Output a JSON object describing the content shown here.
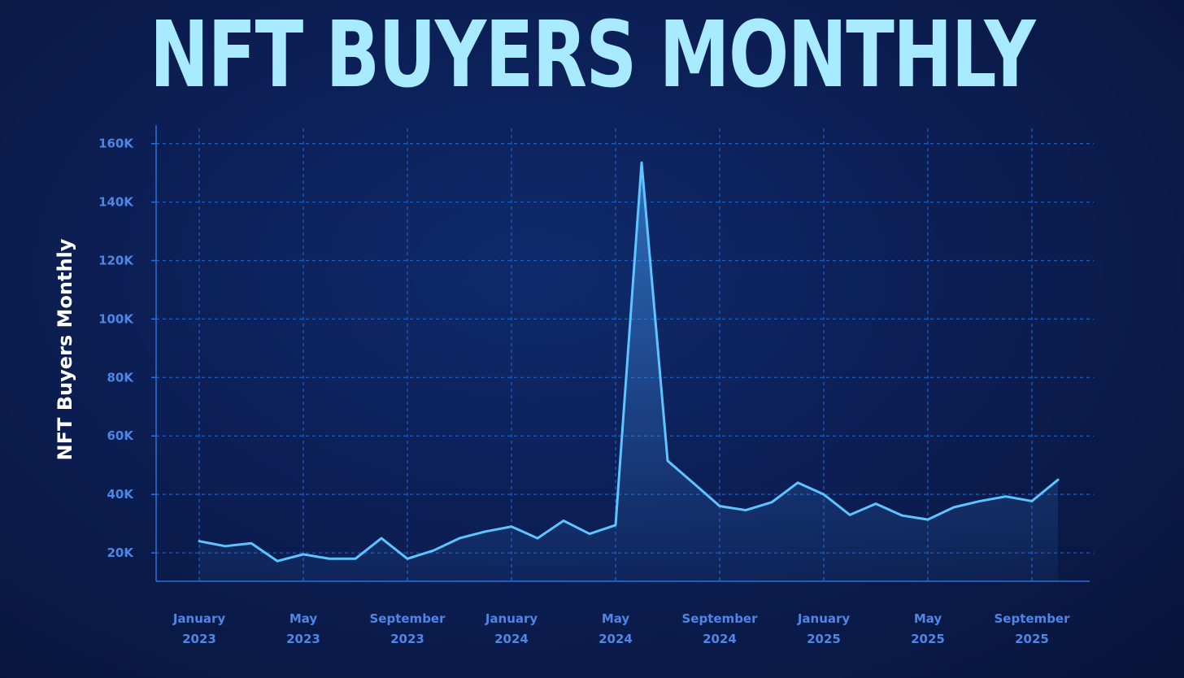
{
  "chart_data": {
    "type": "area",
    "title": "NFT BUYERS MONTHLY",
    "ylabel": "NFT Buyers Monthly",
    "xlabel": "",
    "ylim": [
      10000,
      165000
    ],
    "y_ticks": [
      "20K",
      "40K",
      "60K",
      "80K",
      "100K",
      "120K",
      "140K",
      "160K"
    ],
    "y_tick_values": [
      20000,
      40000,
      60000,
      80000,
      100000,
      120000,
      140000,
      160000
    ],
    "x_ticks": [
      {
        "month": "January",
        "year": "2023",
        "index": 0
      },
      {
        "month": "May",
        "year": "2023",
        "index": 4
      },
      {
        "month": "September",
        "year": "2023",
        "index": 8
      },
      {
        "month": "January",
        "year": "2024",
        "index": 12
      },
      {
        "month": "May",
        "year": "2024",
        "index": 16
      },
      {
        "month": "September",
        "year": "2024",
        "index": 20
      },
      {
        "month": "January",
        "year": "2025",
        "index": 24
      },
      {
        "month": "May",
        "year": "2025",
        "index": 28
      },
      {
        "month": "September",
        "year": "2025",
        "index": 32
      }
    ],
    "x": [
      "2023-01",
      "2023-02",
      "2023-03",
      "2023-04",
      "2023-05",
      "2023-06",
      "2023-07",
      "2023-08",
      "2023-09",
      "2023-10",
      "2023-11",
      "2023-12",
      "2024-01",
      "2024-02",
      "2024-03",
      "2024-04",
      "2024-05",
      "2024-06",
      "2024-07",
      "2024-08",
      "2024-09",
      "2024-10",
      "2024-11",
      "2024-12",
      "2025-01",
      "2025-02",
      "2025-03",
      "2025-04",
      "2025-05",
      "2025-06",
      "2025-07",
      "2025-08",
      "2025-09",
      "2025-10"
    ],
    "series": [
      {
        "values": [
          24000,
          22300,
          23300,
          17200,
          19500,
          18000,
          18000,
          25000,
          18000,
          20800,
          25000,
          27300,
          29000,
          25000,
          31000,
          26500,
          29500,
          153500,
          51500,
          43800,
          36000,
          34600,
          37300,
          44000,
          40000,
          33000,
          36800,
          32800,
          31400,
          35600,
          37700,
          39300,
          37700,
          45000
        ]
      }
    ],
    "grid": true,
    "colors": {
      "line": "#5ec4ff",
      "grid": "#1f5fc4",
      "axis": "#2f6ed6",
      "tick_text": "#4f86e6",
      "title": "#a8eaff",
      "background": "#0c1f55"
    }
  }
}
